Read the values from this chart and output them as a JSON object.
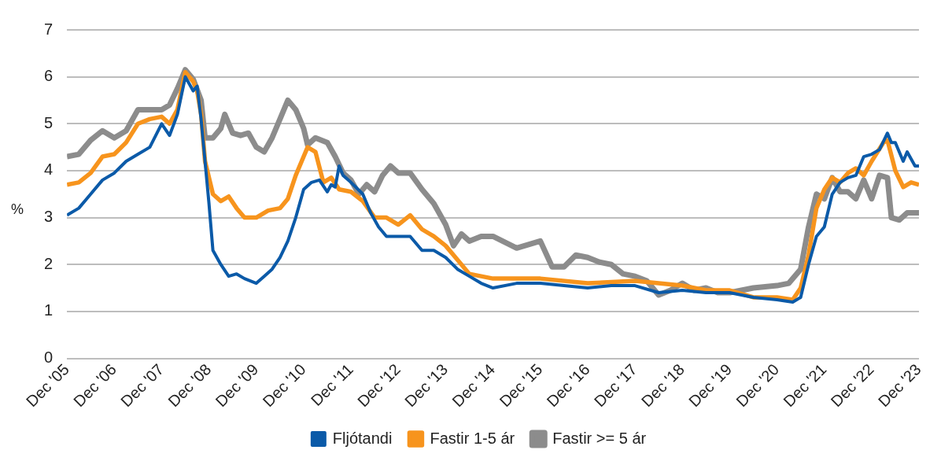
{
  "chart_data": {
    "type": "line",
    "ylabel": "%",
    "xlim": [
      "2005-12",
      "2023-12"
    ],
    "xticks": [
      {
        "value": "2005-12",
        "label": "Dec '05"
      },
      {
        "value": "2006-12",
        "label": "Dec '06"
      },
      {
        "value": "2007-12",
        "label": "Dec '07"
      },
      {
        "value": "2008-12",
        "label": "Dec '08"
      },
      {
        "value": "2009-12",
        "label": "Dec '09"
      },
      {
        "value": "2010-12",
        "label": "Dec '10"
      },
      {
        "value": "2011-12",
        "label": "Dec '11"
      },
      {
        "value": "2012-12",
        "label": "Dec '12"
      },
      {
        "value": "2013-12",
        "label": "Dec '13"
      },
      {
        "value": "2014-12",
        "label": "Dec '14"
      },
      {
        "value": "2015-12",
        "label": "Dec '15"
      },
      {
        "value": "2016-12",
        "label": "Dec '16"
      },
      {
        "value": "2017-12",
        "label": "Dec '17"
      },
      {
        "value": "2018-12",
        "label": "Dec '18"
      },
      {
        "value": "2019-12",
        "label": "Dec '19"
      },
      {
        "value": "2020-12",
        "label": "Dec '20"
      },
      {
        "value": "2021-12",
        "label": "Dec '21"
      },
      {
        "value": "2022-12",
        "label": "Dec '22"
      },
      {
        "value": "2023-12",
        "label": "Dec '23"
      }
    ],
    "ylim": [
      0,
      7
    ],
    "yticks": [
      0,
      1,
      2,
      3,
      4,
      5,
      6,
      7
    ],
    "grid": "y",
    "legend": "bottom",
    "marker": "none",
    "line_style": "solid",
    "series": [
      {
        "name": "Fljótandi",
        "color": "#0b5aa8",
        "x": [
          "2005-12",
          "2006-03",
          "2006-06",
          "2006-09",
          "2006-12",
          "2007-03",
          "2007-06",
          "2007-09",
          "2007-12",
          "2008-02",
          "2008-04",
          "2008-06",
          "2008-08",
          "2008-09",
          "2008-10",
          "2008-12",
          "2009-01",
          "2009-03",
          "2009-05",
          "2009-07",
          "2009-09",
          "2009-12",
          "2010-02",
          "2010-04",
          "2010-06",
          "2010-08",
          "2010-10",
          "2010-12",
          "2011-02",
          "2011-04",
          "2011-06",
          "2011-07",
          "2011-08",
          "2011-09",
          "2011-10",
          "2011-12",
          "2012-03",
          "2012-05",
          "2012-07",
          "2012-09",
          "2012-12",
          "2013-03",
          "2013-06",
          "2013-09",
          "2013-12",
          "2014-03",
          "2014-06",
          "2014-09",
          "2014-12",
          "2015-06",
          "2015-12",
          "2016-06",
          "2016-12",
          "2017-06",
          "2017-12",
          "2018-06",
          "2018-12",
          "2019-06",
          "2019-12",
          "2020-06",
          "2020-12",
          "2021-04",
          "2021-06",
          "2021-08",
          "2021-10",
          "2021-12",
          "2022-02",
          "2022-04",
          "2022-06",
          "2022-08",
          "2022-10",
          "2022-12",
          "2023-02",
          "2023-04",
          "2023-05",
          "2023-06",
          "2023-08",
          "2023-09",
          "2023-11",
          "2023-12"
        ],
        "values": [
          3.05,
          3.2,
          3.5,
          3.8,
          3.95,
          4.2,
          4.35,
          4.5,
          5.0,
          4.75,
          5.2,
          6.0,
          5.7,
          5.8,
          5.1,
          3.3,
          2.3,
          2.0,
          1.75,
          1.8,
          1.7,
          1.6,
          1.75,
          1.9,
          2.15,
          2.5,
          3.0,
          3.6,
          3.75,
          3.8,
          3.55,
          3.7,
          3.65,
          4.1,
          3.9,
          3.75,
          3.5,
          3.1,
          2.8,
          2.6,
          2.6,
          2.6,
          2.3,
          2.3,
          2.15,
          1.9,
          1.75,
          1.6,
          1.5,
          1.6,
          1.6,
          1.55,
          1.5,
          1.55,
          1.55,
          1.4,
          1.45,
          1.4,
          1.4,
          1.3,
          1.25,
          1.2,
          1.3,
          2.0,
          2.6,
          2.8,
          3.5,
          3.75,
          3.85,
          3.9,
          4.3,
          4.35,
          4.45,
          4.8,
          4.6,
          4.6,
          4.2,
          4.4,
          4.1,
          4.1
        ]
      },
      {
        "name": "Fastir 1-5 ár",
        "color": "#f7941d",
        "x": [
          "2005-12",
          "2006-03",
          "2006-06",
          "2006-09",
          "2006-12",
          "2007-03",
          "2007-06",
          "2007-09",
          "2007-12",
          "2008-02",
          "2008-04",
          "2008-06",
          "2008-08",
          "2008-09",
          "2008-10",
          "2008-11",
          "2009-01",
          "2009-03",
          "2009-05",
          "2009-07",
          "2009-09",
          "2009-12",
          "2010-03",
          "2010-06",
          "2010-08",
          "2010-10",
          "2010-12",
          "2011-01",
          "2011-03",
          "2011-05",
          "2011-07",
          "2011-09",
          "2011-12",
          "2012-03",
          "2012-06",
          "2012-09",
          "2012-12",
          "2013-03",
          "2013-06",
          "2013-09",
          "2013-12",
          "2014-03",
          "2014-06",
          "2014-09",
          "2014-12",
          "2015-12",
          "2016-12",
          "2017-12",
          "2018-06",
          "2018-12",
          "2019-06",
          "2019-12",
          "2020-06",
          "2020-12",
          "2021-04",
          "2021-06",
          "2021-08",
          "2021-10",
          "2021-12",
          "2022-02",
          "2022-04",
          "2022-06",
          "2022-08",
          "2022-10",
          "2022-12",
          "2023-03",
          "2023-04",
          "2023-06",
          "2023-08",
          "2023-10",
          "2023-12"
        ],
        "values": [
          3.7,
          3.75,
          3.95,
          4.3,
          4.35,
          4.6,
          5.0,
          5.1,
          5.15,
          5.0,
          5.3,
          6.1,
          5.9,
          5.7,
          5.2,
          4.2,
          3.5,
          3.35,
          3.45,
          3.2,
          3.0,
          3.0,
          3.15,
          3.2,
          3.4,
          3.9,
          4.3,
          4.5,
          4.4,
          3.75,
          3.85,
          3.6,
          3.55,
          3.35,
          3.0,
          3.0,
          2.85,
          3.05,
          2.75,
          2.6,
          2.4,
          2.1,
          1.8,
          1.75,
          1.7,
          1.7,
          1.6,
          1.65,
          1.6,
          1.55,
          1.45,
          1.45,
          1.3,
          1.3,
          1.25,
          1.5,
          2.2,
          3.2,
          3.6,
          3.85,
          3.75,
          3.95,
          4.05,
          3.9,
          4.2,
          4.6,
          4.65,
          4.0,
          3.65,
          3.75,
          3.7
        ]
      },
      {
        "name": "Fastir >= 5 ár",
        "color": "#8c8c8c",
        "x": [
          "2005-12",
          "2006-03",
          "2006-06",
          "2006-09",
          "2006-12",
          "2007-03",
          "2007-06",
          "2007-09",
          "2007-12",
          "2008-02",
          "2008-04",
          "2008-06",
          "2008-08",
          "2008-10",
          "2008-11",
          "2009-01",
          "2009-03",
          "2009-04",
          "2009-06",
          "2009-08",
          "2009-10",
          "2009-12",
          "2010-02",
          "2010-04",
          "2010-06",
          "2010-08",
          "2010-10",
          "2010-12",
          "2011-01",
          "2011-03",
          "2011-06",
          "2011-08",
          "2011-10",
          "2011-12",
          "2012-02",
          "2012-04",
          "2012-06",
          "2012-08",
          "2012-10",
          "2012-12",
          "2013-03",
          "2013-06",
          "2013-09",
          "2013-12",
          "2014-02",
          "2014-04",
          "2014-06",
          "2014-09",
          "2014-12",
          "2015-06",
          "2015-12",
          "2016-03",
          "2016-06",
          "2016-09",
          "2016-12",
          "2017-03",
          "2017-06",
          "2017-09",
          "2017-12",
          "2018-03",
          "2018-06",
          "2018-09",
          "2018-12",
          "2019-03",
          "2019-06",
          "2019-09",
          "2019-12",
          "2020-03",
          "2020-06",
          "2020-12",
          "2021-03",
          "2021-06",
          "2021-08",
          "2021-10",
          "2021-12",
          "2022-02",
          "2022-04",
          "2022-06",
          "2022-08",
          "2022-10",
          "2022-12",
          "2023-02",
          "2023-04",
          "2023-05",
          "2023-07",
          "2023-09",
          "2023-12"
        ],
        "values": [
          4.3,
          4.35,
          4.65,
          4.85,
          4.7,
          4.85,
          5.3,
          5.3,
          5.3,
          5.4,
          5.75,
          6.15,
          5.95,
          5.5,
          4.7,
          4.7,
          4.9,
          5.2,
          4.8,
          4.75,
          4.8,
          4.5,
          4.4,
          4.7,
          5.1,
          5.5,
          5.3,
          4.9,
          4.55,
          4.7,
          4.6,
          4.3,
          3.95,
          3.8,
          3.5,
          3.7,
          3.55,
          3.9,
          4.1,
          3.95,
          3.95,
          3.6,
          3.3,
          2.85,
          2.4,
          2.65,
          2.5,
          2.6,
          2.6,
          2.35,
          2.5,
          1.95,
          1.95,
          2.2,
          2.15,
          2.05,
          2.0,
          1.8,
          1.75,
          1.65,
          1.35,
          1.45,
          1.6,
          1.45,
          1.5,
          1.4,
          1.4,
          1.45,
          1.5,
          1.55,
          1.6,
          1.9,
          2.8,
          3.5,
          3.4,
          3.85,
          3.55,
          3.55,
          3.4,
          3.8,
          3.4,
          3.9,
          3.85,
          3.0,
          2.95,
          3.1,
          3.1
        ]
      }
    ]
  }
}
